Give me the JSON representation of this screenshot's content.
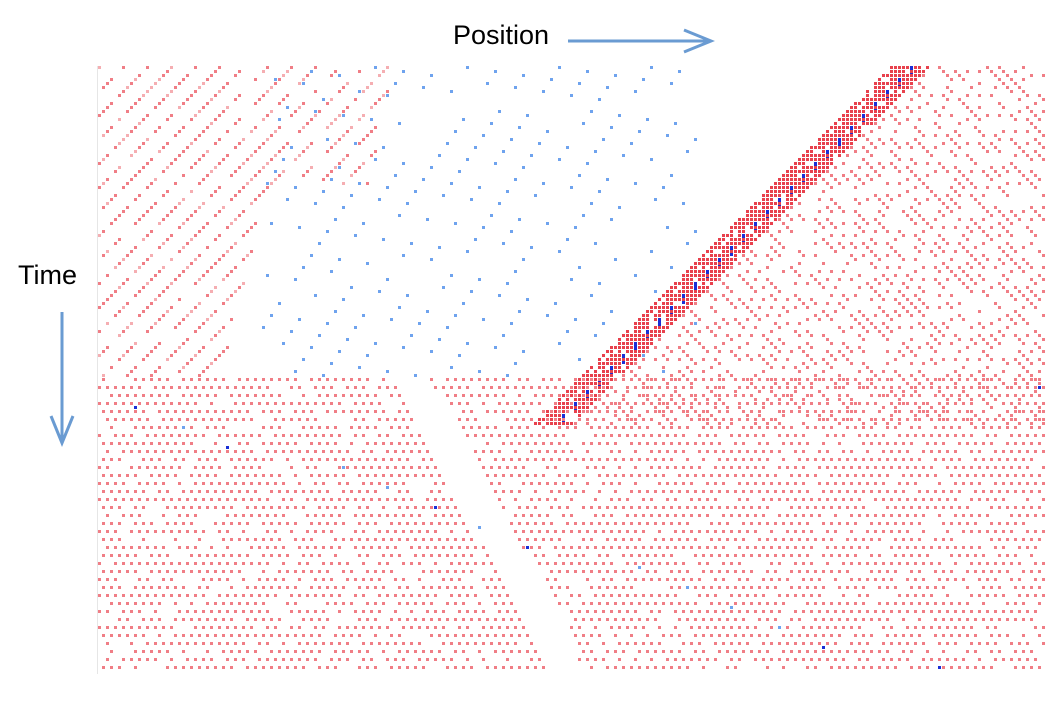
{
  "labels": {
    "position": "Position",
    "time": "Time"
  },
  "colors": {
    "arrow": "#6a9bd2",
    "vehicle_light": "#f07e86",
    "vehicle_pale": "#f5aeb2",
    "vehicle_dense": "#e8414d",
    "slow_light": "#6fa3ee",
    "slow_dark": "#1a2fd6",
    "background": "#ffffff"
  },
  "diagram": {
    "type": "space-time diagram",
    "x_axis_direction": "right",
    "y_axis_direction": "down"
  }
}
